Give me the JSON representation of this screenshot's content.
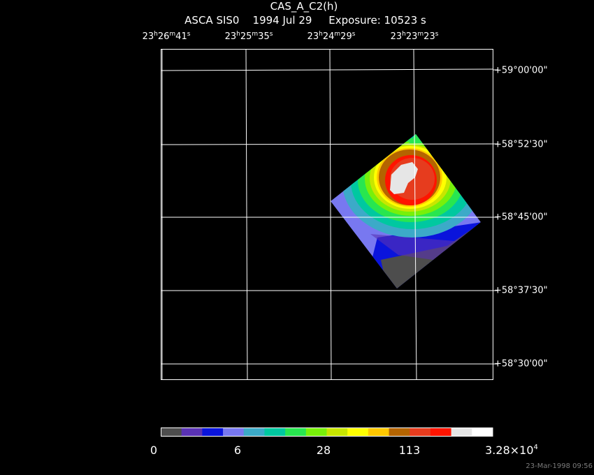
{
  "title": "CAS_A_C2(h)",
  "subtitle": "ASCA SIS0    1994 Jul 29     Exposure: 10523 s",
  "ra_labels": [
    {
      "h": "23",
      "m": "26",
      "s": "41"
    },
    {
      "h": "23",
      "m": "25",
      "s": "35"
    },
    {
      "h": "23",
      "m": "24",
      "s": "29"
    },
    {
      "h": "23",
      "m": "23",
      "s": "23"
    }
  ],
  "ra_unit_symbols": {
    "h": "h",
    "m": "m",
    "s": "s"
  },
  "dec_labels": [
    "+59°00'00\"",
    "+58°52'30\"",
    "+58°45'00\"",
    "+58°37'30\"",
    "+58°30'00\""
  ],
  "colorbar": {
    "labels": [
      "0",
      "6",
      "28",
      "113"
    ],
    "max_label_base": "3.28×10",
    "max_label_exp": "4",
    "colors": [
      "#4d4d4d",
      "#5a32b4",
      "#0a14dc",
      "#7878f0",
      "#3caac8",
      "#00c8a0",
      "#28e650",
      "#78f00a",
      "#c8e600",
      "#ffff00",
      "#ffc800",
      "#b46400",
      "#e63c1e",
      "#ff1400",
      "#e6e6e6",
      "#ffffff"
    ]
  },
  "timestamp": "23-Mar-1998 09:56"
}
